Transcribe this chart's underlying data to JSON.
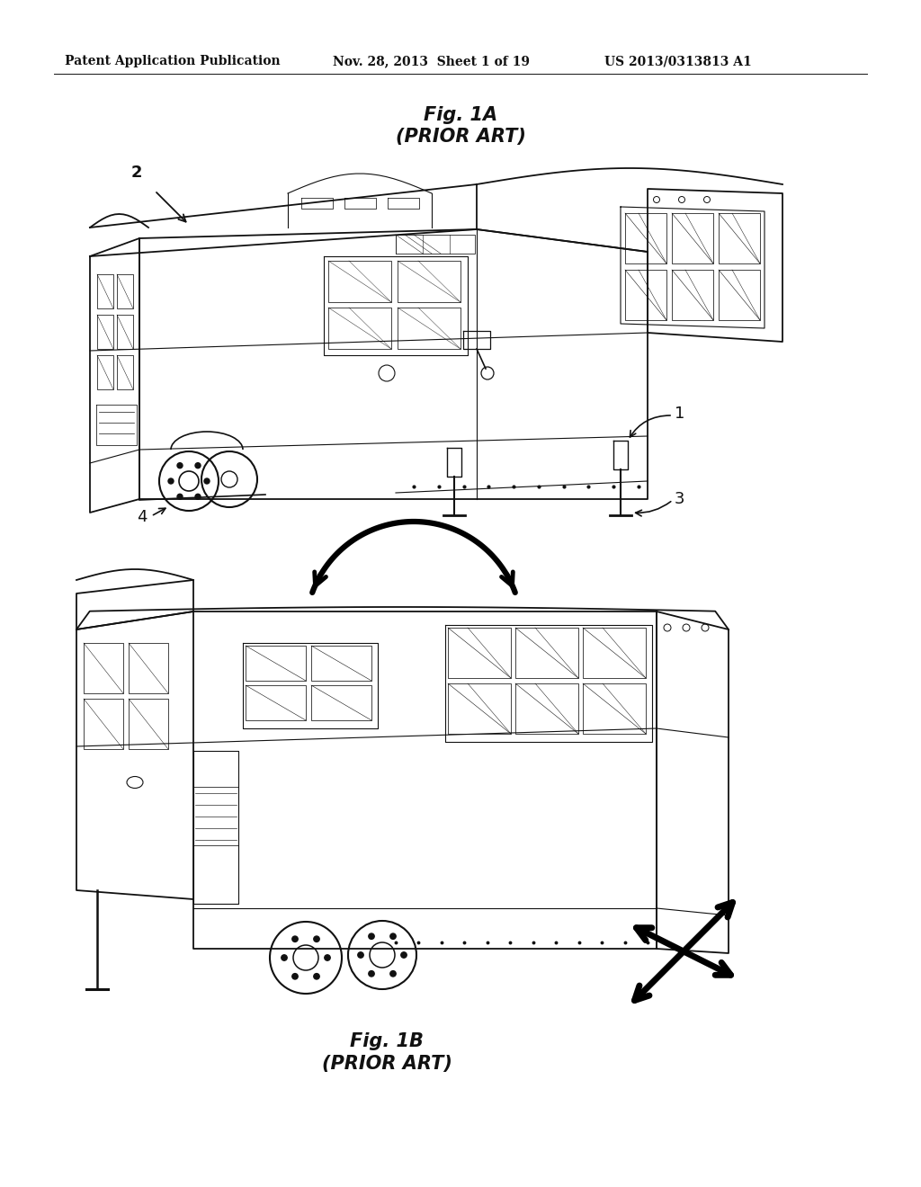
{
  "background_color": "#ffffff",
  "header_left": "Patent Application Publication",
  "header_mid": "Nov. 28, 2013  Sheet 1 of 19",
  "header_right": "US 2013/0313813 A1",
  "fig1a_title": "Fig. 1A",
  "fig1a_sub": "(PRIOR ART)",
  "fig1b_title": "Fig. 1B",
  "fig1b_sub": "(PRIOR ART)",
  "lc": "#111111",
  "header_fs": 10,
  "title_fs": 15,
  "label_fs": 13
}
